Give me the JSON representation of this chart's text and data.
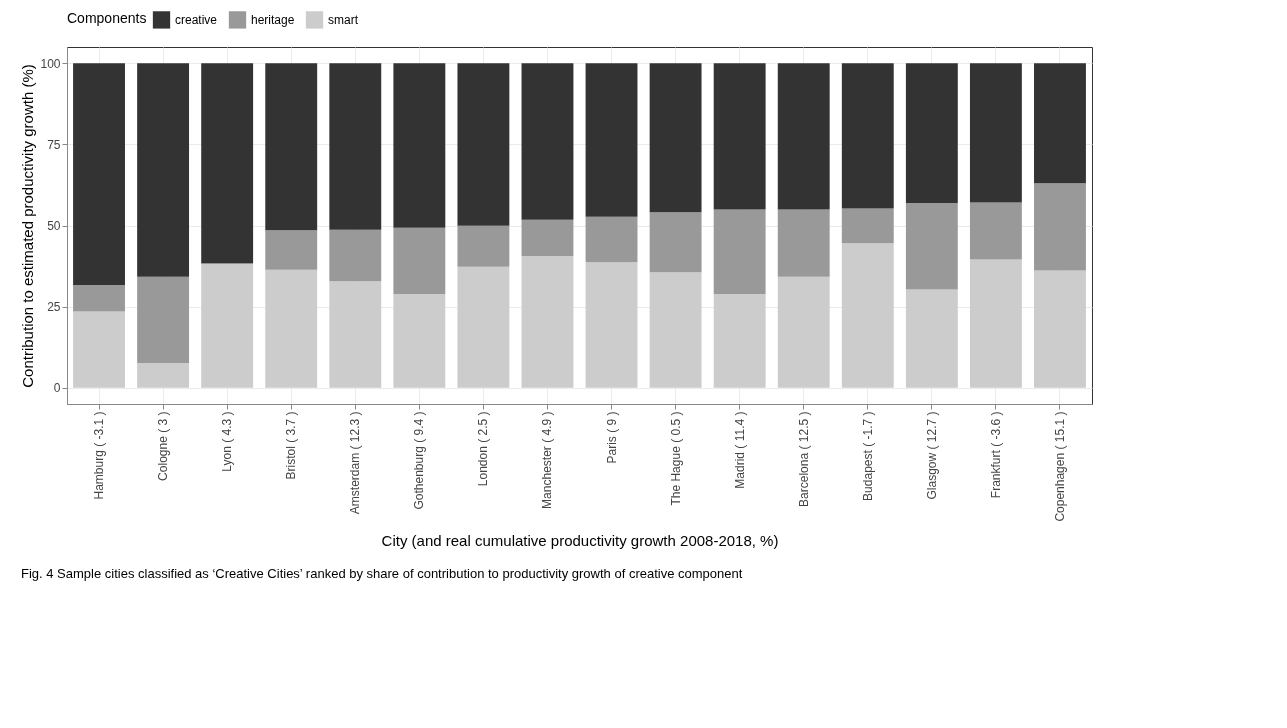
{
  "chart_data": {
    "type": "bar",
    "stacked": true,
    "categories": [
      "Hamburg ( -3.1 )",
      "Cologne ( 3 )",
      "Lyon ( 4.3 )",
      "Bristol ( 3.7 )",
      "Amsterdam ( 12.3 )",
      "Gothenburg ( 9.4 )",
      "London ( 2.5 )",
      "Manchester ( 4.9 )",
      "Paris ( 9 )",
      "The Hague ( 0.5 )",
      "Madrid ( 11.4 )",
      "Barcelona ( 12.5 )",
      "Budapest ( -1.7 )",
      "Glasgow ( 12.7 )",
      "Frankfurt ( -3.6 )",
      "Copenhagen ( 15.1 )"
    ],
    "series": [
      {
        "name": "smart",
        "color": "#cccccc",
        "values": [
          23.5,
          7.6,
          38.1,
          36.4,
          32.8,
          28.9,
          37.3,
          40.6,
          38.7,
          35.6,
          28.9,
          34.2,
          44.5,
          30.3,
          39.5,
          36.1
        ]
      },
      {
        "name": "heritage",
        "color": "#999999",
        "values": [
          8.2,
          26.6,
          0.3,
          12.1,
          15.9,
          20.4,
          12.6,
          11.2,
          14,
          18.5,
          26,
          20.7,
          10.7,
          26.6,
          17.6,
          26.9
        ]
      },
      {
        "name": "creative",
        "color": "#333333",
        "values": [
          68.3,
          65.8,
          61.6,
          51.5,
          51.3,
          50.7,
          50.1,
          48.2,
          47.3,
          45.9,
          45.1,
          45.1,
          44.8,
          43.1,
          42.9,
          37
        ]
      }
    ],
    "ylim": [
      -5,
      105
    ],
    "yticks": [
      0,
      25,
      50,
      75,
      100
    ],
    "grid": true,
    "legend": "top",
    "legend_title": "Components",
    "xlabel": "City (and real cumulative productivity growth 2008-2018, %)",
    "ylabel": "Contribution to estimated productivity growth (%)",
    "annotations": [
      "Fig. 4  Sample cities classified as ‘Creative Cities’ ranked by share of contribution to productivity growth of creative component"
    ]
  }
}
